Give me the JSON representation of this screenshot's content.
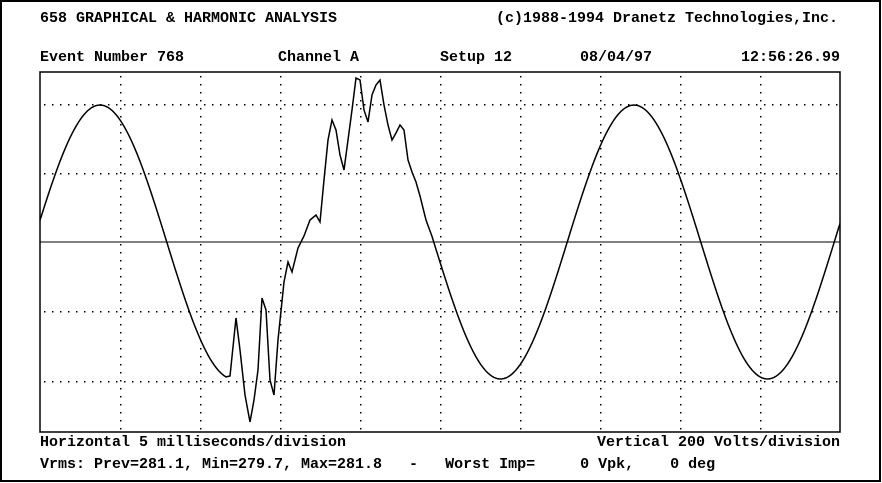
{
  "header": {
    "title": "658 GRAPHICAL & HARMONIC ANALYSIS",
    "copyright": "(c)1988-1994 Dranetz Technologies,Inc."
  },
  "info": {
    "event": "Event Number 768",
    "channel": "Channel A",
    "setup": "Setup 12",
    "date": "08/04/97",
    "time": "12:56:26.99"
  },
  "footer": {
    "horizontal": "Horizontal 5 milliseconds/division",
    "vertical": "Vertical 200 Volts/division",
    "status": "Vrms: Prev=281.1, Min=279.7, Max=281.8   -   Worst Imp=     0 Vpk,    0 deg"
  }
}
